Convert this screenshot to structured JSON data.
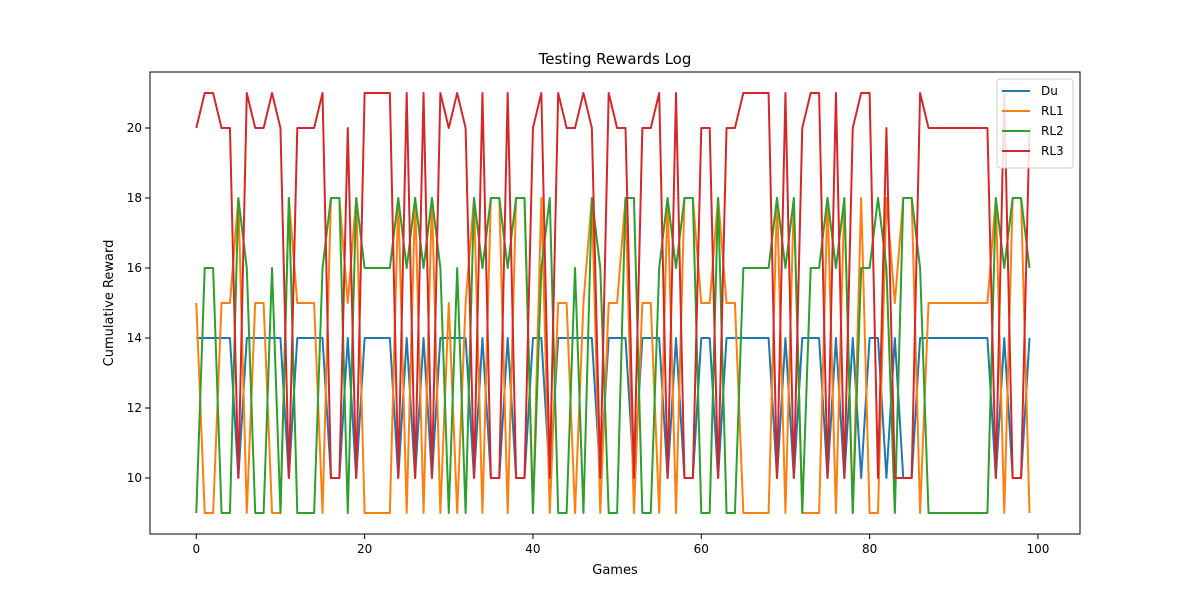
{
  "chart_data": {
    "type": "line",
    "title": "Testing Rewards Log",
    "xlabel": "Games",
    "ylabel": "Cumulative Reward",
    "xlim": [
      -5.5,
      105
    ],
    "ylim": [
      8.4,
      21.6
    ],
    "xticks": [
      0,
      20,
      40,
      60,
      80,
      100
    ],
    "yticks": [
      10,
      12,
      14,
      16,
      18,
      20
    ],
    "grid": false,
    "legend_position": "top-right",
    "x": [
      0,
      1,
      2,
      3,
      4,
      5,
      6,
      7,
      8,
      9,
      10,
      11,
      12,
      13,
      14,
      15,
      16,
      17,
      18,
      19,
      20,
      21,
      22,
      23,
      24,
      25,
      26,
      27,
      28,
      29,
      30,
      31,
      32,
      33,
      34,
      35,
      36,
      37,
      38,
      39,
      40,
      41,
      42,
      43,
      44,
      45,
      46,
      47,
      48,
      49,
      50,
      51,
      52,
      53,
      54,
      55,
      56,
      57,
      58,
      59,
      60,
      61,
      62,
      63,
      64,
      65,
      66,
      67,
      68,
      69,
      70,
      71,
      72,
      73,
      74,
      75,
      76,
      77,
      78,
      79,
      80,
      81,
      82,
      83,
      84,
      85,
      86,
      87,
      88,
      89,
      90,
      91,
      92,
      93,
      94,
      95,
      96,
      97,
      98,
      99
    ],
    "series": [
      {
        "name": "Du",
        "color": "#1f77b4",
        "values": [
          14,
          14,
          14,
          14,
          14,
          10,
          14,
          14,
          14,
          14,
          14,
          10,
          14,
          14,
          14,
          14,
          10,
          10,
          14,
          10,
          14,
          14,
          14,
          14,
          10,
          14,
          10,
          14,
          10,
          14,
          14,
          14,
          14,
          10,
          14,
          10,
          10,
          14,
          10,
          10,
          14,
          14,
          10,
          14,
          14,
          14,
          14,
          14,
          10,
          14,
          14,
          14,
          10,
          14,
          14,
          14,
          10,
          14,
          10,
          10,
          14,
          14,
          10,
          14,
          14,
          14,
          14,
          14,
          14,
          10,
          14,
          10,
          14,
          14,
          14,
          10,
          14,
          10,
          14,
          10,
          14,
          14,
          10,
          14,
          10,
          10,
          14,
          14,
          14,
          14,
          14,
          14,
          14,
          14,
          14,
          10,
          14,
          10,
          10,
          14
        ]
      },
      {
        "name": "RL1",
        "color": "#ff7f0e",
        "values": [
          15,
          9,
          9,
          15,
          15,
          18,
          9,
          15,
          15,
          9,
          9,
          18,
          15,
          15,
          15,
          9,
          18,
          18,
          15,
          18,
          9,
          9,
          9,
          9,
          18,
          9,
          18,
          9,
          18,
          9,
          15,
          9,
          15,
          18,
          9,
          18,
          18,
          9,
          18,
          18,
          9,
          18,
          9,
          15,
          15,
          9,
          15,
          18,
          9,
          15,
          15,
          18,
          9,
          15,
          15,
          9,
          18,
          9,
          18,
          18,
          15,
          15,
          18,
          15,
          15,
          9,
          9,
          9,
          9,
          18,
          9,
          18,
          9,
          9,
          9,
          18,
          9,
          18,
          9,
          18,
          9,
          9,
          18,
          15,
          18,
          18,
          9,
          15,
          15,
          15,
          15,
          15,
          15,
          15,
          15,
          18,
          9,
          18,
          18,
          9
        ]
      },
      {
        "name": "RL2",
        "color": "#2ca02c",
        "values": [
          9,
          16,
          16,
          9,
          9,
          18,
          16,
          9,
          9,
          16,
          9,
          18,
          9,
          9,
          9,
          16,
          18,
          18,
          9,
          18,
          16,
          16,
          16,
          16,
          18,
          16,
          18,
          16,
          18,
          16,
          9,
          16,
          9,
          18,
          16,
          18,
          18,
          16,
          18,
          18,
          9,
          16,
          18,
          9,
          9,
          16,
          9,
          18,
          16,
          9,
          9,
          18,
          18,
          9,
          9,
          16,
          18,
          16,
          18,
          18,
          9,
          9,
          18,
          9,
          9,
          16,
          16,
          16,
          16,
          18,
          16,
          18,
          9,
          16,
          16,
          18,
          16,
          18,
          9,
          16,
          16,
          18,
          16,
          9,
          18,
          18,
          16,
          9,
          9,
          9,
          9,
          9,
          9,
          9,
          9,
          18,
          16,
          18,
          18,
          16
        ]
      },
      {
        "name": "RL3",
        "color": "#d62728",
        "values": [
          20,
          21,
          21,
          20,
          20,
          10,
          21,
          20,
          20,
          21,
          20,
          10,
          20,
          20,
          20,
          21,
          10,
          10,
          20,
          10,
          21,
          21,
          21,
          21,
          10,
          21,
          10,
          21,
          10,
          21,
          20,
          21,
          20,
          10,
          21,
          10,
          10,
          21,
          10,
          10,
          20,
          21,
          10,
          21,
          20,
          20,
          21,
          20,
          10,
          21,
          20,
          20,
          10,
          20,
          20,
          21,
          10,
          21,
          10,
          10,
          20,
          20,
          10,
          20,
          20,
          21,
          21,
          21,
          21,
          10,
          21,
          10,
          20,
          21,
          21,
          10,
          21,
          10,
          20,
          21,
          21,
          10,
          20,
          10,
          10,
          10,
          21,
          20,
          20,
          20,
          20,
          20,
          20,
          20,
          20,
          10,
          21,
          10,
          10,
          20
        ]
      }
    ]
  }
}
